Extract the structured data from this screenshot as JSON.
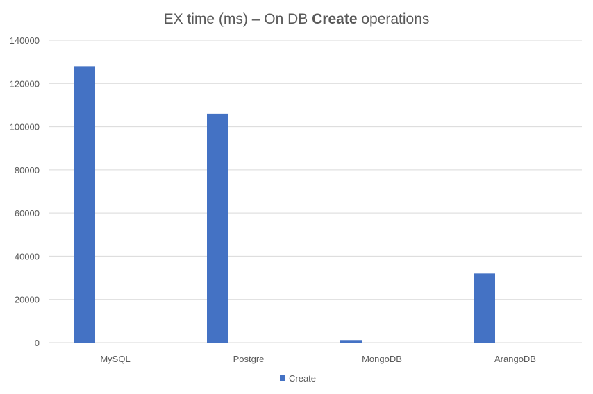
{
  "chart_data": {
    "type": "bar",
    "title_parts": [
      "EX time (ms) – On DB ",
      "Create",
      " operations"
    ],
    "xlabel": "",
    "ylabel": "",
    "categories": [
      "MySQL",
      "Postgre",
      "MongoDB",
      "ArangoDB"
    ],
    "series": [
      {
        "name": "Create",
        "color": "#4472c4",
        "values": [
          128000,
          106000,
          1200,
          32000
        ]
      }
    ],
    "ylim": [
      0,
      140000
    ],
    "yticks": [
      0,
      20000,
      40000,
      60000,
      80000,
      100000,
      120000,
      140000
    ],
    "grid": true,
    "legend_position": "bottom"
  }
}
